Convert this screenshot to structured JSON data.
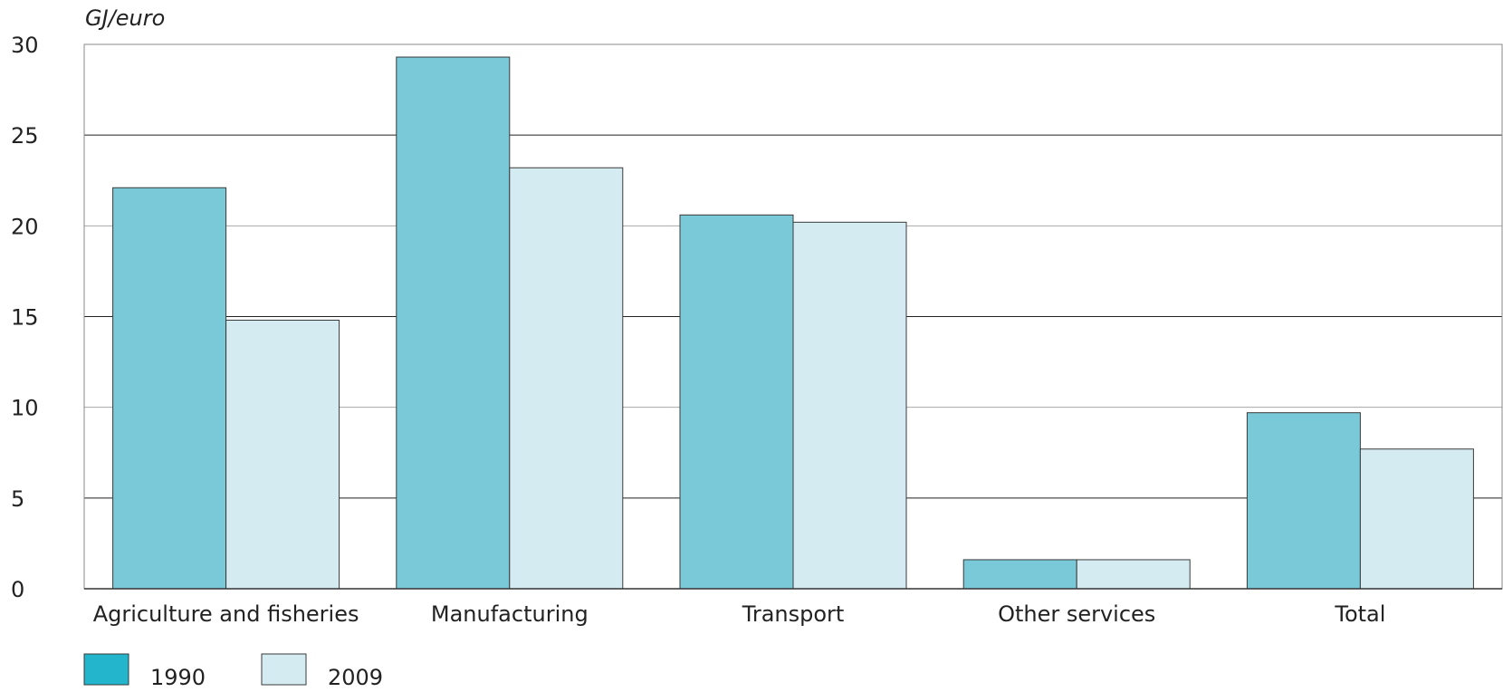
{
  "chart_data": {
    "type": "bar",
    "unit_label": "GJ/euro",
    "categories": [
      "Agriculture and fisheries",
      "Manufacturing",
      "Transport",
      "Other services",
      "Total"
    ],
    "series": [
      {
        "name": "1990",
        "values": [
          22.1,
          29.3,
          20.6,
          1.6,
          9.7
        ],
        "color": "#79c9d8",
        "legend_color": "#22b5cc"
      },
      {
        "name": "2009",
        "values": [
          14.8,
          23.2,
          20.2,
          1.6,
          7.7
        ],
        "color": "#d4ecf1",
        "legend_color": "#d4ecf1"
      }
    ],
    "ylim": [
      0,
      30
    ],
    "yticks": [
      0,
      5,
      10,
      15,
      20,
      25,
      30
    ],
    "grid": true,
    "legend_position": "bottom-left"
  }
}
